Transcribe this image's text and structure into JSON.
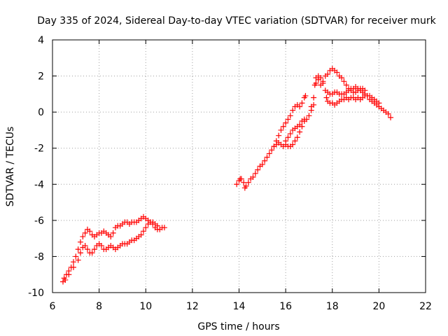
{
  "chart_data": {
    "type": "scatter",
    "title": "Day 335 of 2024, Sidereal Day-to-day VTEC variation (SDTVAR) for receiver murk",
    "xlabel": "GPS time / hours",
    "ylabel": "SDTVAR / TECUs",
    "xlim": [
      6,
      22
    ],
    "ylim": [
      -10,
      4
    ],
    "xticks": [
      "6",
      "8",
      "10",
      "12",
      "14",
      "16",
      "18",
      "20",
      "22"
    ],
    "yticks": [
      "-10",
      "-8",
      "-6",
      "-4",
      "-2",
      "0",
      "2",
      "4"
    ],
    "grid": true,
    "marker": "+",
    "color": "#ff0000",
    "series": [
      {
        "points": [
          [
            6.45,
            -9.4
          ],
          [
            6.5,
            -9.2
          ],
          [
            6.6,
            -9.0
          ],
          [
            6.7,
            -8.8
          ],
          [
            6.8,
            -8.6
          ],
          [
            6.9,
            -8.3
          ],
          [
            7.0,
            -8.0
          ],
          [
            7.1,
            -7.6
          ],
          [
            7.2,
            -7.2
          ],
          [
            7.3,
            -6.9
          ],
          [
            7.4,
            -6.7
          ],
          [
            7.5,
            -6.5
          ],
          [
            7.6,
            -6.6
          ],
          [
            7.7,
            -6.8
          ],
          [
            7.8,
            -6.9
          ],
          [
            7.9,
            -6.8
          ],
          [
            8.0,
            -6.7
          ],
          [
            8.1,
            -6.7
          ],
          [
            8.2,
            -6.6
          ],
          [
            8.3,
            -6.7
          ],
          [
            8.4,
            -6.8
          ],
          [
            8.5,
            -6.9
          ],
          [
            8.6,
            -6.7
          ],
          [
            8.7,
            -6.4
          ],
          [
            8.8,
            -6.3
          ],
          [
            8.9,
            -6.3
          ],
          [
            9.0,
            -6.2
          ],
          [
            9.1,
            -6.1
          ],
          [
            9.2,
            -6.1
          ],
          [
            9.3,
            -6.2
          ],
          [
            9.4,
            -6.1
          ],
          [
            9.5,
            -6.1
          ],
          [
            9.6,
            -6.1
          ],
          [
            9.7,
            -6.0
          ],
          [
            9.8,
            -5.9
          ],
          [
            9.9,
            -5.8
          ],
          [
            10.0,
            -5.9
          ],
          [
            10.1,
            -6.0
          ],
          [
            10.2,
            -6.1
          ],
          [
            10.3,
            -6.2
          ],
          [
            10.4,
            -6.4
          ],
          [
            10.5,
            -6.5
          ],
          [
            10.6,
            -6.5
          ],
          [
            10.7,
            -6.4
          ],
          [
            10.8,
            -6.4
          ],
          [
            6.55,
            -9.3
          ],
          [
            6.7,
            -9.0
          ],
          [
            6.9,
            -8.6
          ],
          [
            7.1,
            -8.2
          ],
          [
            7.2,
            -7.8
          ],
          [
            7.3,
            -7.5
          ],
          [
            7.4,
            -7.4
          ],
          [
            7.5,
            -7.6
          ],
          [
            7.6,
            -7.8
          ],
          [
            7.7,
            -7.8
          ],
          [
            7.8,
            -7.6
          ],
          [
            7.9,
            -7.4
          ],
          [
            8.0,
            -7.3
          ],
          [
            8.1,
            -7.4
          ],
          [
            8.2,
            -7.6
          ],
          [
            8.3,
            -7.6
          ],
          [
            8.4,
            -7.5
          ],
          [
            8.5,
            -7.4
          ],
          [
            8.6,
            -7.5
          ],
          [
            8.7,
            -7.6
          ],
          [
            8.8,
            -7.5
          ],
          [
            8.9,
            -7.4
          ],
          [
            9.0,
            -7.3
          ],
          [
            9.1,
            -7.3
          ],
          [
            9.2,
            -7.3
          ],
          [
            9.3,
            -7.2
          ],
          [
            9.4,
            -7.1
          ],
          [
            9.5,
            -7.1
          ],
          [
            9.6,
            -7.0
          ],
          [
            9.7,
            -6.9
          ],
          [
            9.8,
            -6.8
          ],
          [
            9.9,
            -6.6
          ],
          [
            10.0,
            -6.4
          ],
          [
            10.1,
            -6.2
          ],
          [
            10.2,
            -6.1
          ],
          [
            10.3,
            -6.1
          ],
          [
            10.4,
            -6.2
          ],
          [
            10.5,
            -6.3
          ],
          [
            13.9,
            -4.0
          ],
          [
            14.0,
            -3.8
          ],
          [
            14.05,
            -3.7
          ],
          [
            14.1,
            -3.7
          ],
          [
            14.2,
            -3.9
          ],
          [
            14.25,
            -4.2
          ],
          [
            14.3,
            -4.1
          ],
          [
            14.4,
            -3.9
          ],
          [
            14.5,
            -3.7
          ],
          [
            14.6,
            -3.6
          ],
          [
            14.7,
            -3.4
          ],
          [
            14.8,
            -3.2
          ],
          [
            14.9,
            -3.0
          ],
          [
            15.0,
            -2.9
          ],
          [
            15.1,
            -2.7
          ],
          [
            15.2,
            -2.5
          ],
          [
            15.3,
            -2.3
          ],
          [
            15.4,
            -2.1
          ],
          [
            15.5,
            -1.9
          ],
          [
            15.6,
            -1.8
          ],
          [
            15.7,
            -1.7
          ],
          [
            15.8,
            -1.8
          ],
          [
            15.9,
            -1.9
          ],
          [
            16.0,
            -1.8
          ],
          [
            16.1,
            -1.9
          ],
          [
            16.2,
            -1.9
          ],
          [
            16.3,
            -1.8
          ],
          [
            16.4,
            -1.6
          ],
          [
            16.5,
            -1.4
          ],
          [
            16.6,
            -1.1
          ],
          [
            16.7,
            -0.8
          ],
          [
            16.8,
            -0.5
          ],
          [
            15.5,
            -1.9
          ],
          [
            15.6,
            -1.6
          ],
          [
            15.7,
            -1.3
          ],
          [
            15.8,
            -1.0
          ],
          [
            15.9,
            -0.8
          ],
          [
            16.0,
            -0.6
          ],
          [
            16.1,
            -0.4
          ],
          [
            16.2,
            -0.2
          ],
          [
            16.3,
            0.1
          ],
          [
            16.4,
            0.3
          ],
          [
            16.5,
            0.4
          ],
          [
            16.6,
            0.3
          ],
          [
            16.7,
            0.5
          ],
          [
            16.8,
            0.8
          ],
          [
            16.85,
            0.9
          ],
          [
            17.1,
            0.3
          ],
          [
            17.2,
            0.8
          ],
          [
            17.25,
            1.5
          ],
          [
            17.3,
            1.9
          ],
          [
            17.4,
            1.8
          ],
          [
            17.5,
            1.5
          ],
          [
            17.6,
            1.7
          ],
          [
            17.7,
            2.0
          ],
          [
            17.8,
            2.1
          ],
          [
            17.9,
            2.3
          ],
          [
            18.0,
            2.4
          ],
          [
            18.1,
            2.3
          ],
          [
            18.2,
            2.2
          ],
          [
            18.3,
            2.0
          ],
          [
            18.4,
            1.9
          ],
          [
            18.5,
            1.7
          ],
          [
            18.6,
            1.5
          ],
          [
            18.7,
            1.3
          ],
          [
            18.8,
            1.2
          ],
          [
            18.9,
            1.1
          ],
          [
            19.0,
            1.1
          ],
          [
            19.1,
            1.2
          ],
          [
            19.2,
            1.3
          ],
          [
            19.3,
            1.3
          ],
          [
            19.4,
            1.2
          ],
          [
            17.3,
            1.6
          ],
          [
            17.4,
            2.0
          ],
          [
            17.5,
            1.9
          ],
          [
            17.6,
            1.6
          ],
          [
            17.7,
            1.2
          ],
          [
            17.75,
            0.8
          ],
          [
            17.8,
            0.6
          ],
          [
            17.9,
            0.5
          ],
          [
            18.0,
            0.5
          ],
          [
            18.1,
            0.4
          ],
          [
            18.2,
            0.5
          ],
          [
            18.3,
            0.6
          ],
          [
            18.4,
            0.7
          ],
          [
            18.5,
            0.7
          ],
          [
            18.6,
            0.8
          ],
          [
            18.7,
            0.7
          ],
          [
            18.8,
            0.8
          ],
          [
            18.9,
            0.8
          ],
          [
            19.0,
            0.7
          ],
          [
            19.1,
            0.8
          ],
          [
            19.2,
            0.7
          ],
          [
            19.3,
            0.8
          ],
          [
            19.4,
            0.9
          ],
          [
            19.5,
            0.9
          ],
          [
            19.6,
            0.7
          ],
          [
            19.7,
            0.6
          ],
          [
            19.8,
            0.5
          ],
          [
            19.9,
            0.4
          ],
          [
            20.0,
            0.3
          ],
          [
            20.1,
            0.2
          ],
          [
            20.2,
            0.1
          ],
          [
            20.3,
            0.0
          ],
          [
            20.4,
            -0.1
          ],
          [
            20.5,
            -0.3
          ],
          [
            17.8,
            1.1
          ],
          [
            17.9,
            1.0
          ],
          [
            18.0,
            1.0
          ],
          [
            18.1,
            1.1
          ],
          [
            18.2,
            1.1
          ],
          [
            18.3,
            1.0
          ],
          [
            18.4,
            1.0
          ],
          [
            18.5,
            1.0
          ],
          [
            18.6,
            1.1
          ],
          [
            18.7,
            1.2
          ],
          [
            18.8,
            1.3
          ],
          [
            18.9,
            1.3
          ],
          [
            19.0,
            1.4
          ],
          [
            19.1,
            1.3
          ],
          [
            19.2,
            1.2
          ],
          [
            19.3,
            1.1
          ],
          [
            19.4,
            1.0
          ],
          [
            19.5,
            0.9
          ],
          [
            19.6,
            0.9
          ],
          [
            19.7,
            0.8
          ],
          [
            19.8,
            0.7
          ],
          [
            19.9,
            0.6
          ],
          [
            20.0,
            0.5
          ],
          [
            16.0,
            -1.6
          ],
          [
            16.1,
            -1.4
          ],
          [
            16.2,
            -1.2
          ],
          [
            16.3,
            -1.0
          ],
          [
            16.4,
            -0.9
          ],
          [
            16.5,
            -0.8
          ],
          [
            16.6,
            -0.7
          ],
          [
            16.7,
            -0.5
          ],
          [
            16.8,
            -0.4
          ],
          [
            16.9,
            -0.4
          ],
          [
            17.0,
            -0.2
          ],
          [
            17.1,
            0.1
          ],
          [
            17.2,
            0.4
          ]
        ]
      }
    ]
  }
}
